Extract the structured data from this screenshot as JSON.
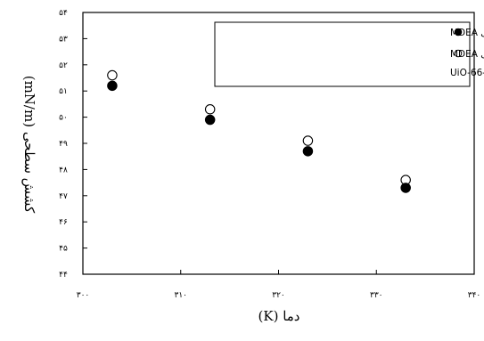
{
  "chart_data": {
    "type": "scatter",
    "xlabel": "دما (K)",
    "ylabel": "کشش سطحی (mN/m)",
    "xlim": [
      300,
      340
    ],
    "ylim": [
      44,
      54
    ],
    "x_ticks": [
      "۳۰۰",
      "۳۱۰",
      "۳۲۰",
      "۳۳۰",
      "۳۴۰"
    ],
    "y_ticks": [
      "۴۴",
      "۴۵",
      "۴۶",
      "۴۷",
      "۴۸",
      "۴۹",
      "۵۰",
      "۵۱",
      "۵۲",
      "۵۳",
      "۵۴"
    ],
    "grid": false,
    "legend_position": "top-right",
    "series": [
      {
        "name": "محلول حاوی ۰/۴ کسرجرمی MDEA",
        "marker": "filled-circle",
        "color": "#000000",
        "x": [
          303,
          313,
          323,
          333
        ],
        "y": [
          51.2,
          49.9,
          48.7,
          47.3
        ]
      },
      {
        "name": "محلول حاوی ۰/۴ کسر جرمی MDEA و ۰/۰۰۱ کسر جرمی UiO-66-NH2",
        "legend_lines": [
          "محلول حاوی ۰/۴ کسر جرمی MDEA",
          "و ۰/۰۰۱ کسر جرمی UiO-66-NH2"
        ],
        "marker": "open-circle",
        "color": "#000000",
        "x": [
          303,
          313,
          323,
          333
        ],
        "y": [
          51.6,
          50.3,
          49.1,
          47.6
        ]
      }
    ]
  }
}
